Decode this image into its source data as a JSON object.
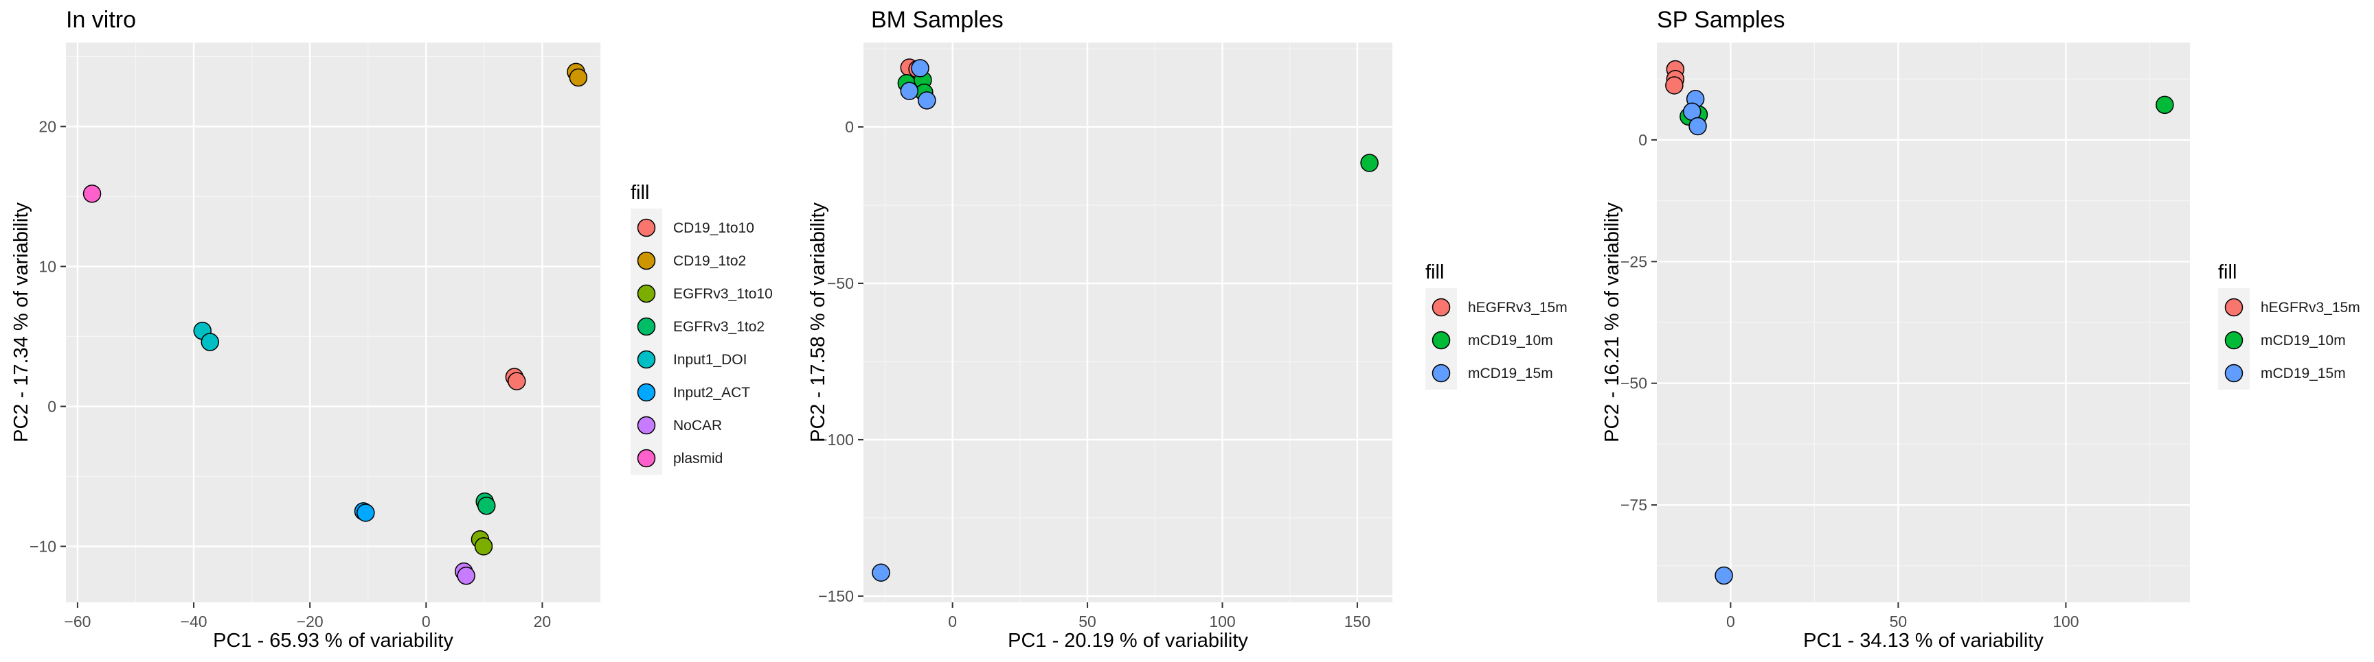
{
  "chart_data": [
    {
      "type": "scatter",
      "title": "In vitro",
      "xlabel": "PC1 - 65.93 % of variability",
      "ylabel": "PC2 - 17.34 % of variability",
      "xlim": [
        -62,
        30
      ],
      "ylim": [
        -14,
        26
      ],
      "xticks": [
        -60,
        -40,
        -20,
        0,
        20
      ],
      "yticks": [
        -10,
        0,
        10,
        20
      ],
      "grid": true,
      "legend_title": "fill",
      "legend_position": "right",
      "series": [
        {
          "name": "CD19_1to10",
          "color": "#F8766D",
          "points": [
            [
              15.2,
              2.1
            ],
            [
              15.6,
              1.8
            ]
          ]
        },
        {
          "name": "CD19_1to2",
          "color": "#CD9600",
          "points": [
            [
              25.8,
              23.9
            ],
            [
              26.2,
              23.5
            ]
          ]
        },
        {
          "name": "EGFRv3_1to10",
          "color": "#7CAE00",
          "points": [
            [
              9.3,
              -9.5
            ],
            [
              9.9,
              -10.0
            ]
          ]
        },
        {
          "name": "EGFRv3_1to2",
          "color": "#00BE67",
          "points": [
            [
              10.1,
              -6.8
            ],
            [
              10.4,
              -7.1
            ]
          ]
        },
        {
          "name": "Input1_DOI",
          "color": "#00BFC4",
          "points": [
            [
              -38.5,
              5.4
            ],
            [
              -37.2,
              4.6
            ]
          ]
        },
        {
          "name": "Input2_ACT",
          "color": "#00A9FF",
          "points": [
            [
              -10.8,
              -7.5
            ],
            [
              -10.4,
              -7.6
            ]
          ]
        },
        {
          "name": "NoCAR",
          "color": "#C77CFF",
          "points": [
            [
              6.5,
              -11.8
            ],
            [
              6.9,
              -12.1
            ]
          ]
        },
        {
          "name": "plasmid",
          "color": "#FF61CC",
          "points": [
            [
              -57.5,
              15.2
            ]
          ]
        }
      ]
    },
    {
      "type": "scatter",
      "title": "BM Samples",
      "xlabel": "PC1 - 20.19 % of variability",
      "ylabel": "PC2 - 17.58 % of variability",
      "xlim": [
        -33,
        163
      ],
      "ylim": [
        -152,
        27
      ],
      "xticks": [
        0,
        50,
        100,
        150
      ],
      "yticks": [
        -150,
        -100,
        -50,
        0
      ],
      "grid": true,
      "legend_title": "fill",
      "legend_position": "right",
      "series": [
        {
          "name": "hEGFRv3_15m",
          "color": "#F8766D",
          "points": [
            [
              -16,
              19
            ],
            [
              -13,
              18.5
            ]
          ]
        },
        {
          "name": "mCD19_10m",
          "color": "#00BA38",
          "points": [
            [
              -17,
              14
            ],
            [
              -11,
              15
            ],
            [
              -10.5,
              11
            ],
            [
              154.5,
              -11.5
            ]
          ]
        },
        {
          "name": "mCD19_15m",
          "color": "#619CFF",
          "points": [
            [
              -12,
              18.8
            ],
            [
              -16,
              11.5
            ],
            [
              -9.5,
              8.5
            ],
            [
              -26.5,
              -142.5
            ]
          ]
        }
      ]
    },
    {
      "type": "scatter",
      "title": "SP Samples",
      "xlabel": "PC1 - 34.13 % of variability",
      "ylabel": "PC2 - 16.21 % of variability",
      "xlim": [
        -22,
        137
      ],
      "ylim": [
        -95,
        20
      ],
      "xticks": [
        0,
        50,
        100
      ],
      "yticks": [
        -75,
        -50,
        -25,
        0
      ],
      "grid": true,
      "legend_title": "fill",
      "legend_position": "right",
      "series": [
        {
          "name": "hEGFRv3_15m",
          "color": "#F8766D",
          "points": [
            [
              -16.5,
              14.5
            ],
            [
              -16.5,
              12.5
            ],
            [
              -16.8,
              11.2
            ]
          ]
        },
        {
          "name": "mCD19_10m",
          "color": "#00BA38",
          "points": [
            [
              -12.5,
              4.8
            ],
            [
              -9.5,
              5.2
            ],
            [
              129.5,
              7.2
            ]
          ]
        },
        {
          "name": "mCD19_15m",
          "color": "#619CFF",
          "points": [
            [
              -10.5,
              8.4
            ],
            [
              -11.5,
              5.8
            ],
            [
              -9.8,
              2.8
            ],
            [
              -2,
              -89.5
            ]
          ]
        }
      ]
    }
  ]
}
